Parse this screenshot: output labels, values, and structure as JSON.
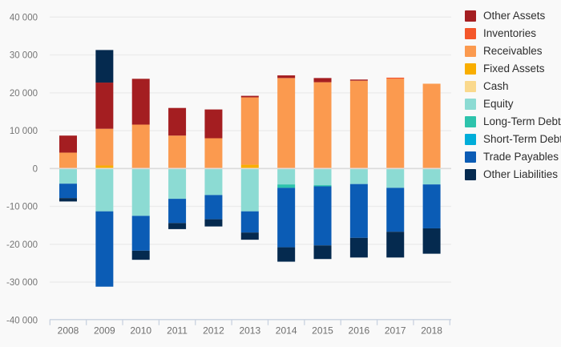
{
  "chart_data": {
    "type": "bar",
    "stacked": true,
    "title": "",
    "xlabel": "",
    "ylabel": "",
    "grid": true,
    "legend_position": "right",
    "categories": [
      "2008",
      "2009",
      "2010",
      "2011",
      "2012",
      "2013",
      "2014",
      "2015",
      "2016",
      "2017",
      "2018"
    ],
    "y_axis": {
      "min": -40000,
      "max": 40000,
      "tick_step": 10000,
      "tick_values": [
        40000,
        30000,
        20000,
        10000,
        0,
        -10000,
        -20000,
        -30000,
        -40000
      ],
      "tick_labels": [
        "40 000",
        "30 000",
        "20 000",
        "10 000",
        "0",
        "-10 000",
        "-20 000",
        "-30 000",
        "-40 000"
      ]
    },
    "series": [
      {
        "name": "Other Assets",
        "color": "#A41E21",
        "values": [
          4500,
          12200,
          12100,
          7300,
          7600,
          400,
          700,
          1100,
          300,
          0,
          0
        ]
      },
      {
        "name": "Inventories",
        "color": "#F4562A",
        "values": [
          0,
          0,
          0,
          0,
          0,
          0,
          0,
          0,
          0,
          300,
          0
        ]
      },
      {
        "name": "Receivables",
        "color": "#FB9A4F",
        "values": [
          4200,
          9700,
          11600,
          8700,
          8000,
          17800,
          23900,
          22800,
          23200,
          23700,
          22400
        ]
      },
      {
        "name": "Fixed Assets",
        "color": "#F9AE00",
        "values": [
          0,
          800,
          0,
          0,
          0,
          1000,
          0,
          0,
          0,
          0,
          0
        ]
      },
      {
        "name": "Cash",
        "color": "#FAD98D",
        "values": [
          0,
          0,
          0,
          0,
          0,
          0,
          0,
          0,
          0,
          0,
          0
        ]
      },
      {
        "name": "Equity",
        "color": "#8CDBD3",
        "values": [
          -4000,
          -11300,
          -12500,
          -8000,
          -7000,
          -11300,
          -4200,
          -4400,
          -4100,
          -5100,
          -4200
        ]
      },
      {
        "name": "Long-Term Debt",
        "color": "#2DC3AC",
        "values": [
          0,
          0,
          0,
          0,
          0,
          0,
          -900,
          -300,
          0,
          0,
          0
        ]
      },
      {
        "name": "Short-Term Debt",
        "color": "#00ADD9",
        "values": [
          0,
          0,
          0,
          0,
          0,
          0,
          0,
          0,
          0,
          0,
          0
        ]
      },
      {
        "name": "Trade Payables",
        "color": "#0B5CB5",
        "values": [
          -3800,
          -19900,
          -9200,
          -6400,
          -6400,
          -5600,
          -15700,
          -15600,
          -14200,
          -11600,
          -11600
        ]
      },
      {
        "name": "Other Liabilities",
        "color": "#052A4F",
        "values": [
          -900,
          8600,
          -2400,
          -1600,
          -1900,
          -1900,
          -3800,
          -3600,
          -5200,
          -6800,
          -6700
        ]
      }
    ],
    "stack_order_positive": [
      "Cash",
      "Fixed Assets",
      "Receivables",
      "Inventories",
      "Other Assets",
      "Other Liabilities"
    ],
    "stack_order_negative": [
      "Equity",
      "Long-Term Debt",
      "Short-Term Debt",
      "Trade Payables",
      "Other Liabilities"
    ]
  },
  "legend": {
    "items": [
      {
        "label": "Other Assets",
        "color": "#A41E21"
      },
      {
        "label": "Inventories",
        "color": "#F4562A"
      },
      {
        "label": "Receivables",
        "color": "#FB9A4F"
      },
      {
        "label": "Fixed Assets",
        "color": "#F9AE00"
      },
      {
        "label": "Cash",
        "color": "#FAD98D"
      },
      {
        "label": "Equity",
        "color": "#8CDBD3"
      },
      {
        "label": "Long-Term Debt",
        "color": "#2DC3AC"
      },
      {
        "label": "Short-Term Debt",
        "color": "#00ADD9"
      },
      {
        "label": "Trade Payables",
        "color": "#0B5CB5"
      },
      {
        "label": "Other Liabilities",
        "color": "#052A4F"
      }
    ]
  },
  "colors": {
    "background": "#F9F9F9",
    "gridline": "#ECECEC",
    "zero_line": "#DBDBDB",
    "axis_line": "#C9D2E0",
    "y_tick_text": "#757575",
    "x_tick_text": "#6E6E6E",
    "legend_text": "#2D2D2D"
  }
}
